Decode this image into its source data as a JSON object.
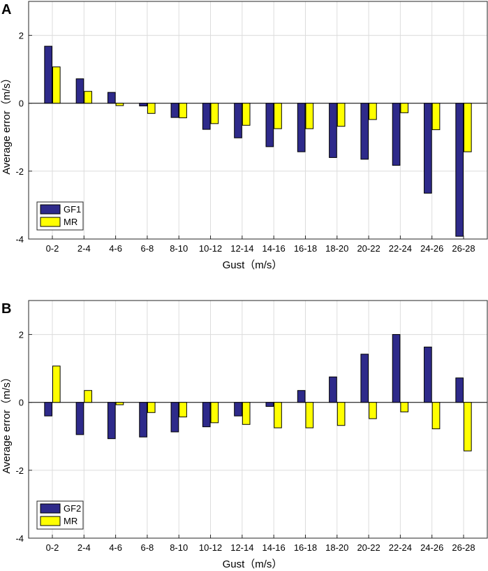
{
  "chart_data": [
    {
      "panel": "A",
      "type": "bar",
      "xlabel": "Gust（m/s）",
      "ylabel": "Average error（m/s）",
      "categories": [
        "0-2",
        "2-4",
        "4-6",
        "6-8",
        "8-10",
        "10-12",
        "12-14",
        "14-16",
        "16-18",
        "18-20",
        "20-22",
        "22-24",
        "24-26",
        "26-28"
      ],
      "ylim": [
        -4,
        3
      ],
      "yticks": [
        -4,
        -2,
        0,
        2
      ],
      "grid": true,
      "legend_position": "bottom-left",
      "series": [
        {
          "name": "GF1",
          "color": "#2e2a8a",
          "values": [
            1.68,
            0.72,
            0.32,
            -0.08,
            -0.42,
            -0.77,
            -1.02,
            -1.28,
            -1.43,
            -1.6,
            -1.65,
            -1.83,
            -2.65,
            -3.92
          ]
        },
        {
          "name": "MR",
          "color": "#ffff00",
          "values": [
            1.07,
            0.35,
            -0.07,
            -0.3,
            -0.43,
            -0.6,
            -0.65,
            -0.75,
            -0.75,
            -0.68,
            -0.48,
            -0.28,
            -0.78,
            -1.43
          ]
        }
      ]
    },
    {
      "panel": "B",
      "type": "bar",
      "xlabel": "Gust（m/s）",
      "ylabel": "Average error（m/s）",
      "categories": [
        "0-2",
        "2-4",
        "4-6",
        "6-8",
        "8-10",
        "10-12",
        "12-14",
        "14-16",
        "16-18",
        "18-20",
        "20-22",
        "22-24",
        "24-26",
        "26-28"
      ],
      "ylim": [
        -4,
        3
      ],
      "yticks": [
        -4,
        -2,
        0,
        2
      ],
      "grid": true,
      "legend_position": "bottom-left",
      "series": [
        {
          "name": "GF2",
          "color": "#2e2a8a",
          "values": [
            -0.4,
            -0.95,
            -1.07,
            -1.02,
            -0.87,
            -0.72,
            -0.4,
            -0.12,
            0.35,
            0.75,
            1.42,
            2.0,
            1.63,
            0.72
          ]
        },
        {
          "name": "MR",
          "color": "#ffff00",
          "values": [
            1.07,
            0.35,
            -0.07,
            -0.3,
            -0.43,
            -0.6,
            -0.65,
            -0.75,
            -0.75,
            -0.68,
            -0.48,
            -0.28,
            -0.78,
            -1.43
          ]
        }
      ]
    }
  ]
}
